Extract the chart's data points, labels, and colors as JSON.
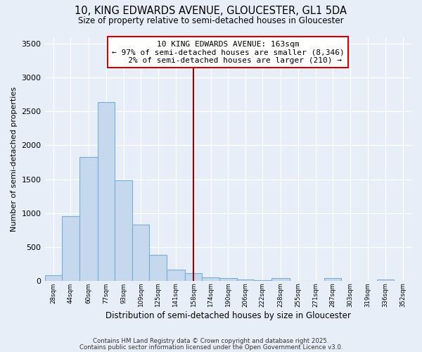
{
  "title_line1": "10, KING EDWARDS AVENUE, GLOUCESTER, GL1 5DA",
  "title_line2": "Size of property relative to semi-detached houses in Gloucester",
  "xlabel": "Distribution of semi-detached houses by size in Gloucester",
  "ylabel": "Number of semi-detached properties",
  "bar_color": "#c5d8ed",
  "bar_edge_color": "#7aafd4",
  "vline_x": 158,
  "vline_color": "#8b0000",
  "annotation_text": "10 KING EDWARDS AVENUE: 163sqm\n← 97% of semi-detached houses are smaller (8,346)\n   2% of semi-detached houses are larger (210) →",
  "ylim": [
    0,
    3600
  ],
  "bg_color": "#e8eef8",
  "grid_color": "#ffffff",
  "bin_lefts": [
    20,
    36,
    52,
    69,
    85,
    101,
    117,
    133,
    150,
    166,
    182,
    198,
    214,
    230,
    247,
    263,
    279,
    295,
    311,
    328,
    344
  ],
  "bin_rights": [
    36,
    52,
    69,
    85,
    101,
    117,
    133,
    150,
    166,
    182,
    198,
    214,
    230,
    247,
    263,
    279,
    295,
    311,
    328,
    344,
    360
  ],
  "tick_labels": [
    "28sqm",
    "44sqm",
    "60sqm",
    "77sqm",
    "93sqm",
    "109sqm",
    "125sqm",
    "141sqm",
    "158sqm",
    "174sqm",
    "190sqm",
    "206sqm",
    "222sqm",
    "238sqm",
    "255sqm",
    "271sqm",
    "287sqm",
    "303sqm",
    "319sqm",
    "336sqm",
    "352sqm"
  ],
  "bar_heights": [
    85,
    950,
    1830,
    2640,
    1480,
    830,
    380,
    160,
    110,
    50,
    35,
    20,
    10,
    35,
    0,
    0,
    35,
    0,
    0,
    20,
    0
  ],
  "footer_line1": "Contains HM Land Registry data © Crown copyright and database right 2025.",
  "footer_line2": "Contains public sector information licensed under the Open Government Licence v3.0."
}
